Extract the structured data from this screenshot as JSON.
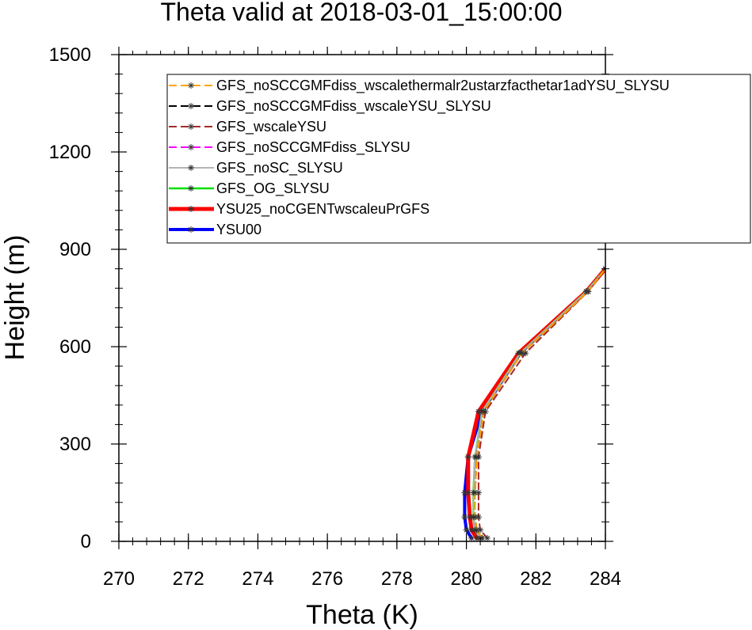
{
  "chart_data": {
    "type": "line",
    "title": "Theta valid at 2018-03-01_15:00:00",
    "xlabel": "Theta (K)",
    "ylabel": "Height (m)",
    "xlim": [
      270,
      284
    ],
    "ylim": [
      0,
      1500
    ],
    "xticks": [
      "270",
      "272",
      "274",
      "276",
      "278",
      "280",
      "282",
      "284"
    ],
    "yticks": [
      "0",
      "300",
      "600",
      "900",
      "1200",
      "1500"
    ],
    "legend_position": "top-right",
    "grid": false,
    "series": [
      {
        "name": "GFS_noSCCGMFdiss_wscalethermalr2ustarzfacthetar1adYSU_SLYSU",
        "color": "#ffa500",
        "dashed": true,
        "width": 2,
        "x": [
          280.45,
          280.3,
          280.25,
          280.25,
          280.3,
          280.5,
          281.6,
          283.5,
          284.0
        ],
        "y": [
          10,
          35,
          75,
          150,
          260,
          400,
          580,
          770,
          840
        ]
      },
      {
        "name": "GFS_noSCCGMFdiss_wscaleYSU_SLYSU",
        "color": "#000000",
        "dashed": true,
        "width": 2,
        "x": [
          280.45,
          280.3,
          280.25,
          280.25,
          280.3,
          280.5,
          281.6,
          283.5,
          284.0
        ],
        "y": [
          10,
          35,
          75,
          150,
          260,
          400,
          580,
          770,
          840
        ]
      },
      {
        "name": "GFS_wscaleYSU",
        "color": "#a52a2a",
        "dashed": true,
        "width": 2,
        "x": [
          280.6,
          280.4,
          280.35,
          280.35,
          280.35,
          280.55,
          281.7,
          283.5,
          284.0
        ],
        "y": [
          10,
          35,
          75,
          150,
          260,
          400,
          580,
          770,
          840
        ]
      },
      {
        "name": "GFS_noSCCGMFdiss_SLYSU",
        "color": "#ff00ff",
        "dashed": true,
        "width": 2,
        "x": [
          280.45,
          280.3,
          280.25,
          280.25,
          280.3,
          280.5,
          281.6,
          283.5,
          284.0
        ],
        "y": [
          10,
          35,
          75,
          150,
          260,
          400,
          580,
          770,
          840
        ]
      },
      {
        "name": "GFS_noSC_SLYSU",
        "color": "#b4b4b4",
        "dashed": false,
        "width": 2,
        "x": [
          280.4,
          280.25,
          280.2,
          280.2,
          280.25,
          280.45,
          281.55,
          283.45,
          284.0
        ],
        "y": [
          10,
          35,
          75,
          150,
          260,
          400,
          580,
          770,
          840
        ]
      },
      {
        "name": "GFS_OG_SLYSU",
        "color": "#00e000",
        "dashed": false,
        "width": 2.5,
        "x": [
          280.4,
          280.25,
          280.2,
          280.2,
          280.25,
          280.45,
          281.55,
          283.45,
          284.0
        ],
        "y": [
          10,
          35,
          75,
          150,
          260,
          400,
          580,
          770,
          840
        ]
      },
      {
        "name": "YSU25_noCGENTwscaleuPrGFS",
        "color": "#ff0000",
        "dashed": false,
        "width": 5,
        "x": [
          280.3,
          280.15,
          280.1,
          280.05,
          280.05,
          280.35,
          281.5,
          283.45,
          284.0
        ],
        "y": [
          10,
          35,
          75,
          150,
          260,
          400,
          580,
          770,
          840
        ]
      },
      {
        "name": "YSU00",
        "color": "#0000ff",
        "dashed": false,
        "width": 4,
        "x": [
          280.15,
          280.0,
          279.95,
          279.95,
          280.05,
          280.45,
          281.55,
          283.45,
          284.0
        ],
        "y": [
          10,
          35,
          75,
          150,
          260,
          400,
          580,
          770,
          840
        ]
      }
    ]
  }
}
